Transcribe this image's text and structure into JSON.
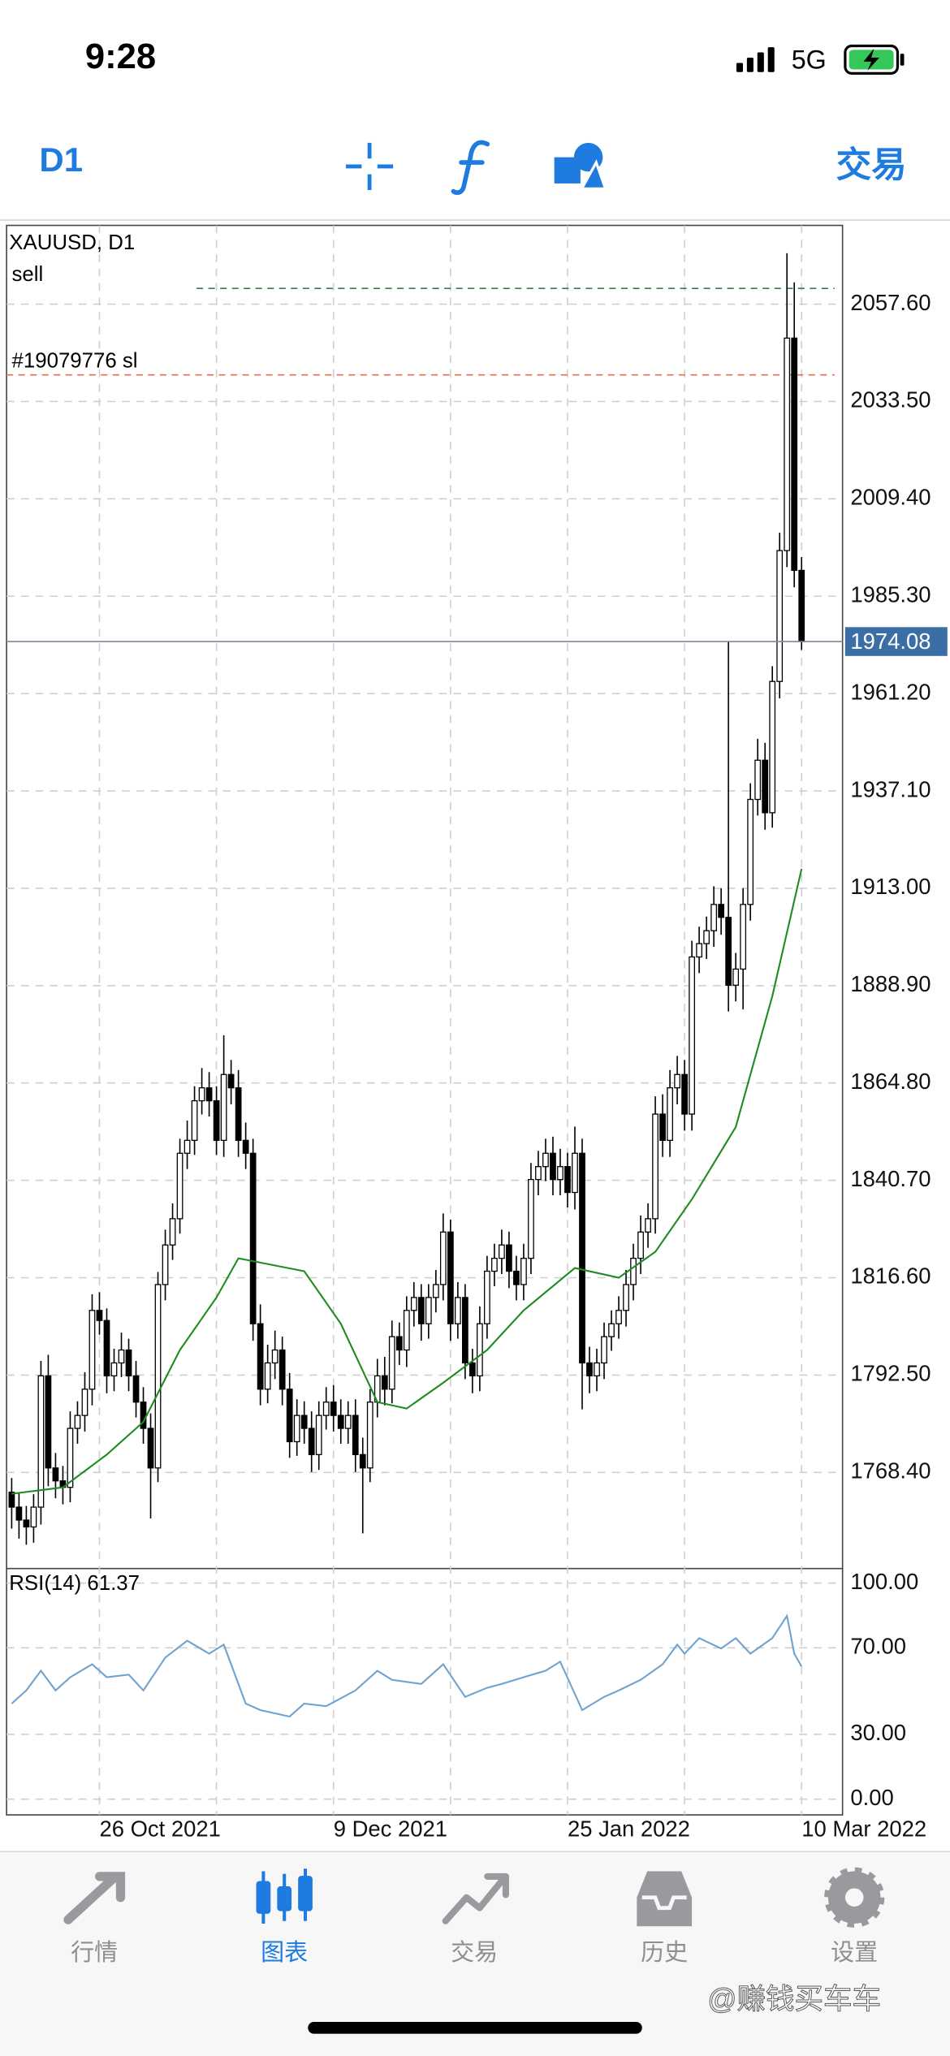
{
  "status_bar": {
    "time": "9:28",
    "network": "5G"
  },
  "toolbar": {
    "timeframe": "D1",
    "trade": "交易"
  },
  "chart_data": {
    "type": "candlestick",
    "symbol_label": "XAUUSD, D1",
    "open": [
      1763.5,
      1759.8,
      1756.6,
      1754.9,
      1759.8,
      1792.3,
      1769.5,
      1766.3,
      1764.7,
      1779.3,
      1782.5,
      1789.0,
      1808.5,
      1806.0,
      1792.3,
      1795.5,
      1798.7,
      1792.3,
      1785.8,
      1779.3,
      1769.5,
      1814.9,
      1824.7,
      1831.2,
      1847.4,
      1850.6,
      1860.4,
      1863.6,
      1860.4,
      1850.6,
      1866.9,
      1863.6,
      1850.6,
      1847.4,
      1805.2,
      1789.0,
      1795.5,
      1798.7,
      1789.0,
      1776.0,
      1782.5,
      1779.3,
      1772.8,
      1782.5,
      1785.8,
      1782.5,
      1779.3,
      1782.5,
      1772.8,
      1769.5,
      1785.8,
      1792.3,
      1789.0,
      1802.0,
      1798.7,
      1808.5,
      1811.7,
      1805.2,
      1811.7,
      1814.9,
      1827.9,
      1805.2,
      1811.7,
      1795.5,
      1792.3,
      1805.2,
      1818.2,
      1821.4,
      1824.7,
      1818.2,
      1814.9,
      1821.4,
      1840.9,
      1844.1,
      1847.4,
      1840.9,
      1844.1,
      1837.7,
      1847.4,
      1795.5,
      1792.3,
      1795.5,
      1802.0,
      1805.2,
      1808.5,
      1814.9,
      1821.4,
      1827.9,
      1831.2,
      1857.1,
      1850.6,
      1863.6,
      1866.9,
      1857.1,
      1896.0,
      1899.3,
      1902.5,
      1909.0,
      1905.8,
      1889.0,
      1893.0,
      1909.0,
      1935.0,
      1944.7,
      1931.7,
      1964.2,
      1996.6,
      2049.2,
      1991.7
    ],
    "high": [
      1767.0,
      1763.2,
      1760.1,
      1763.0,
      1796.0,
      1797.5,
      1773.2,
      1770.0,
      1783.5,
      1786.0,
      1793.2,
      1812.5,
      1813.0,
      1809.0,
      1799.0,
      1803.0,
      1801.5,
      1796.0,
      1789.5,
      1783.0,
      1818.0,
      1828.5,
      1835.0,
      1851.0,
      1855.5,
      1864.0,
      1868.5,
      1867.5,
      1864.0,
      1876.6,
      1870.5,
      1868.0,
      1855.0,
      1851.0,
      1810.0,
      1800.0,
      1803.5,
      1802.0,
      1793.0,
      1786.5,
      1786.0,
      1783.5,
      1786.0,
      1789.5,
      1790.0,
      1786.5,
      1786.0,
      1786.5,
      1777.0,
      1789.0,
      1796.5,
      1797.0,
      1806.0,
      1805.5,
      1812.0,
      1815.5,
      1815.0,
      1815.0,
      1818.5,
      1832.5,
      1831.0,
      1815.5,
      1815.0,
      1799.0,
      1809.5,
      1822.0,
      1825.0,
      1828.5,
      1828.0,
      1822.0,
      1825.0,
      1845.0,
      1848.0,
      1851.0,
      1851.5,
      1848.5,
      1847.5,
      1854.0,
      1851.0,
      1799.5,
      1799.0,
      1805.5,
      1808.5,
      1812.0,
      1818.5,
      1825.0,
      1832.0,
      1835.0,
      1861.5,
      1862.0,
      1868.0,
      1871.5,
      1870.5,
      1900.0,
      1903.5,
      1906.0,
      1913.5,
      1913.0,
      1974.0,
      1897.0,
      1913.0,
      1939.0,
      1950.0,
      1949.0,
      1968.0,
      2001.0,
      2070.2,
      2063.0,
      1995.0
    ],
    "low": [
      1754.5,
      1752.0,
      1750.5,
      1751.0,
      1755.5,
      1765.0,
      1762.0,
      1760.5,
      1761.0,
      1775.5,
      1778.5,
      1785.0,
      1802.5,
      1788.0,
      1788.5,
      1792.0,
      1788.5,
      1782.0,
      1775.5,
      1757.0,
      1766.0,
      1811.0,
      1821.0,
      1827.5,
      1843.5,
      1847.0,
      1857.0,
      1856.5,
      1847.0,
      1846.5,
      1859.5,
      1846.5,
      1843.5,
      1801.0,
      1785.0,
      1785.5,
      1791.5,
      1785.0,
      1772.0,
      1772.5,
      1775.5,
      1768.5,
      1769.0,
      1779.0,
      1778.5,
      1775.5,
      1775.5,
      1768.5,
      1753.3,
      1766.0,
      1782.0,
      1785.0,
      1785.5,
      1795.0,
      1794.5,
      1804.5,
      1801.0,
      1801.5,
      1808.0,
      1811.0,
      1801.0,
      1801.5,
      1791.5,
      1788.0,
      1788.5,
      1801.5,
      1814.5,
      1817.5,
      1814.0,
      1811.0,
      1811.0,
      1817.5,
      1837.0,
      1840.5,
      1837.0,
      1837.0,
      1834.0,
      1833.5,
      1784.0,
      1788.0,
      1788.5,
      1791.5,
      1798.5,
      1801.5,
      1804.5,
      1811.0,
      1817.5,
      1824.0,
      1827.5,
      1846.5,
      1846.5,
      1859.5,
      1853.0,
      1853.0,
      1892.0,
      1895.5,
      1898.5,
      1901.5,
      1882.5,
      1885.0,
      1883.0,
      1905.0,
      1931.0,
      1927.5,
      1928.0,
      1960.0,
      1992.5,
      1987.5,
      1972.0
    ],
    "close": [
      1759.8,
      1756.6,
      1754.9,
      1759.8,
      1792.3,
      1769.5,
      1766.3,
      1764.7,
      1779.3,
      1782.5,
      1789.0,
      1808.5,
      1806.0,
      1792.3,
      1795.5,
      1798.7,
      1792.3,
      1785.8,
      1779.3,
      1769.5,
      1814.9,
      1824.7,
      1831.2,
      1847.4,
      1850.6,
      1860.4,
      1863.6,
      1860.4,
      1850.6,
      1866.9,
      1863.6,
      1850.6,
      1847.4,
      1805.2,
      1789.0,
      1795.5,
      1798.7,
      1789.0,
      1776.0,
      1782.5,
      1779.3,
      1772.8,
      1782.5,
      1785.8,
      1782.5,
      1779.3,
      1782.5,
      1772.8,
      1769.5,
      1785.8,
      1792.3,
      1789.0,
      1802.0,
      1798.7,
      1808.5,
      1811.7,
      1805.2,
      1811.7,
      1814.9,
      1827.9,
      1805.2,
      1811.7,
      1795.5,
      1792.3,
      1805.2,
      1818.2,
      1821.4,
      1824.7,
      1818.2,
      1814.9,
      1821.4,
      1840.9,
      1844.1,
      1847.4,
      1840.9,
      1844.1,
      1837.7,
      1847.4,
      1795.5,
      1792.3,
      1795.5,
      1802.0,
      1805.2,
      1808.5,
      1814.9,
      1821.4,
      1827.9,
      1831.2,
      1857.1,
      1850.6,
      1863.6,
      1866.9,
      1857.1,
      1896.0,
      1899.3,
      1902.5,
      1909.0,
      1905.8,
      1889.0,
      1893.0,
      1909.0,
      1935.0,
      1944.7,
      1931.7,
      1964.2,
      1996.6,
      2049.2,
      1991.7,
      1974.08
    ],
    "xlim": [
      -0.7,
      113.6
    ],
    "ylim": [
      1744.6,
      2077.1
    ],
    "yticks": [
      {
        "value": 1768.4,
        "label": "1768.40"
      },
      {
        "value": 1792.5,
        "label": "1792.50"
      },
      {
        "value": 1816.6,
        "label": "1816.60"
      },
      {
        "value": 1840.7,
        "label": "1840.70"
      },
      {
        "value": 1864.8,
        "label": "1864.80"
      },
      {
        "value": 1888.9,
        "label": "1888.90"
      },
      {
        "value": 1913.0,
        "label": "1913.00"
      },
      {
        "value": 1937.1,
        "label": "1937.10"
      },
      {
        "value": 1961.2,
        "label": "1961.20"
      },
      {
        "value": 1985.3,
        "label": "1985.30"
      },
      {
        "value": 2009.4,
        "label": "2009.40"
      },
      {
        "value": 2033.5,
        "label": "2033.50"
      },
      {
        "value": 2057.6,
        "label": "2057.60"
      }
    ],
    "xticks": [
      {
        "value": 12,
        "label": "26 Oct 2021"
      },
      {
        "value": 44,
        "label": "9 Dec 2021"
      },
      {
        "value": 76,
        "label": "25 Jan 2022"
      },
      {
        "value": 108,
        "label": "10 Mar 2022"
      }
    ],
    "xgrid": [
      28,
      60,
      92
    ],
    "grid": true,
    "up_color": "#ffffff",
    "down_color": "#000000",
    "current_price": 1974.08,
    "current_price_color": "#3a6ea5",
    "orders": [
      {
        "label": "sell",
        "price": 2061.5,
        "color": "#3c7a46"
      },
      {
        "label": "#19079776 sl",
        "price": 2040.1,
        "color": "#e07050"
      }
    ],
    "ma": {
      "color": "#1e8c1e",
      "x": [
        0,
        7,
        13,
        18,
        23,
        28,
        31,
        40,
        45,
        50,
        54,
        59,
        65,
        70,
        77,
        83,
        88,
        93,
        99,
        104,
        108
      ],
      "values": [
        1763.1,
        1764.7,
        1772.8,
        1780.9,
        1798.7,
        1811.7,
        1821.4,
        1818.2,
        1805.2,
        1785.8,
        1784.2,
        1790.6,
        1798.7,
        1808.5,
        1819.0,
        1816.6,
        1823.0,
        1836.0,
        1853.9,
        1886.3,
        1917.8
      ]
    },
    "rsi": {
      "title": "RSI(14) 61.37",
      "color": "#6fa3cf",
      "ylim": [
        -7.3,
        106.7
      ],
      "yticks": [
        {
          "value": 0,
          "label": "0.00"
        },
        {
          "value": 30,
          "label": "30.00"
        },
        {
          "value": 70,
          "label": "70.00"
        },
        {
          "value": 100,
          "label": "100.00"
        }
      ],
      "x": [
        0,
        2,
        4,
        6,
        8,
        11,
        13,
        16,
        18,
        21,
        24,
        27,
        29,
        32,
        34,
        38,
        40,
        43,
        47,
        50,
        52,
        56,
        59,
        62,
        65,
        67,
        70,
        73,
        75,
        78,
        81,
        83,
        86,
        89,
        91,
        92,
        94,
        97,
        99,
        101,
        104,
        106,
        107,
        108
      ],
      "values": [
        44.2,
        50.3,
        59.4,
        50.3,
        56.4,
        62.4,
        56.4,
        57.6,
        50.3,
        65.5,
        73.3,
        67.3,
        71.5,
        44.2,
        41.2,
        38.2,
        44.2,
        43.0,
        50.3,
        59.4,
        55.2,
        53.3,
        62.4,
        47.3,
        51.5,
        53.3,
        56.4,
        59.4,
        63.6,
        41.2,
        47.3,
        50.3,
        55.2,
        62.4,
        71.5,
        67.3,
        74.5,
        69.7,
        74.5,
        67.3,
        74.5,
        84.8,
        67.3,
        61.37
      ]
    }
  },
  "tab_bar": {
    "tabs": [
      "行情",
      "图表",
      "交易",
      "历史",
      "设置"
    ],
    "active": 1
  },
  "watermark": "@赚钱买车车"
}
